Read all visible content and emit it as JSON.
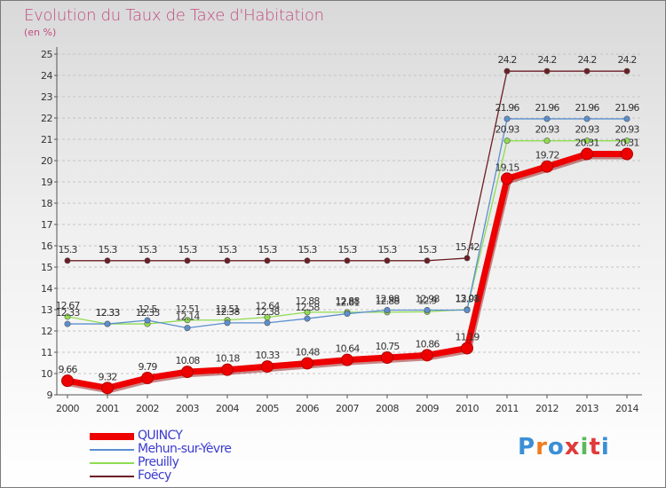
{
  "title": "Evolution du Taux de Taxe d'Habitation",
  "unit_label": "(en %)",
  "logo": {
    "text": "Proxiti",
    "colors": [
      "#3a8fd6",
      "#f07c1e",
      "#3a8fd6",
      "#e03a3a",
      "#5cb85c",
      "#e03a3a",
      "#3a8fd6"
    ]
  },
  "chart_data": {
    "type": "line",
    "title": "Evolution du Taux de Taxe d'Habitation",
    "ylabel": "(en %)",
    "xlabel": "",
    "ylim": [
      9,
      25
    ],
    "yticks": [
      9,
      10,
      11,
      12,
      13,
      14,
      15,
      16,
      17,
      18,
      19,
      20,
      21,
      22,
      23,
      24,
      25
    ],
    "categories": [
      "2000",
      "2001",
      "2002",
      "2003",
      "2004",
      "2005",
      "2006",
      "2007",
      "2008",
      "2009",
      "2010",
      "2011",
      "2012",
      "2013",
      "2014"
    ],
    "series": [
      {
        "name": "Foëcy",
        "color": "#6b1e24",
        "values": [
          15.3,
          15.3,
          15.3,
          15.3,
          15.3,
          15.3,
          15.3,
          15.3,
          15.3,
          15.3,
          15.42,
          24.2,
          24.2,
          24.2,
          24.2
        ],
        "labels": [
          "15.3",
          "15.3",
          "15.3",
          "15.3",
          "15.3",
          "15.3",
          "15.3",
          "15.3",
          "15.3",
          "15.3",
          "15.42",
          "24.2",
          "24.2",
          "24.2",
          "24.2"
        ]
      },
      {
        "name": "Preuilly",
        "color": "#8fdc50",
        "values": [
          12.67,
          12.33,
          12.33,
          12.51,
          12.51,
          12.64,
          12.88,
          12.88,
          12.88,
          12.9,
          13.01,
          20.93,
          20.93,
          20.93,
          20.93
        ],
        "labels": [
          "12.67",
          "12.33",
          "12.33",
          "12.51",
          "12.51",
          "12.64",
          "12.88",
          "12.88",
          "12.88",
          "12.9",
          "13.01",
          "20.93",
          "20.93",
          "20.93",
          "20.93"
        ]
      },
      {
        "name": "Mehun-sur-Yèvre",
        "color": "#5b8fcf",
        "values": [
          12.33,
          12.33,
          12.5,
          12.14,
          12.38,
          12.38,
          12.58,
          12.81,
          12.98,
          12.98,
          12.98,
          21.96,
          21.96,
          21.96,
          21.96
        ],
        "labels": [
          "12.33",
          "12.33",
          "12.5",
          "12.14",
          "12.38",
          "12.38",
          "12.58",
          "12.81",
          "12.98",
          "12.98",
          "12.98",
          "21.96",
          "21.96",
          "21.96",
          "21.96"
        ]
      },
      {
        "name": "QUINCY",
        "color": "#ee0000",
        "values": [
          9.66,
          9.32,
          9.79,
          10.08,
          10.18,
          10.33,
          10.48,
          10.64,
          10.75,
          10.86,
          11.19,
          19.15,
          19.72,
          20.31,
          20.31
        ],
        "labels": [
          "9.66",
          "9.32",
          "9.79",
          "10.08",
          "10.18",
          "10.33",
          "10.48",
          "10.64",
          "10.75",
          "10.86",
          "11.19",
          "19.15",
          "19.72",
          "20.31",
          "20.31"
        ]
      }
    ],
    "legend": [
      {
        "name": "QUINCY",
        "color": "#ee0000"
      },
      {
        "name": "Mehun-sur-Yèvre",
        "color": "#5b8fcf"
      },
      {
        "name": "Preuilly",
        "color": "#8fdc50"
      },
      {
        "name": "Foëcy",
        "color": "#6b1e24"
      }
    ],
    "legend_position": "bottom-left"
  }
}
